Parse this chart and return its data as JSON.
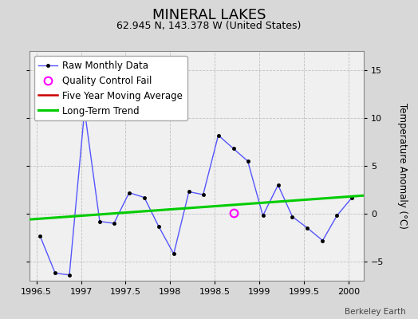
{
  "title": "MINERAL LAKES",
  "subtitle": "62.945 N, 143.378 W (United States)",
  "ylabel_right": "Temperature Anomaly (°C)",
  "watermark": "Berkeley Earth",
  "xlim": [
    1996.42,
    2000.17
  ],
  "ylim": [
    -7,
    17
  ],
  "yticks": [
    -5,
    0,
    5,
    10,
    15
  ],
  "xticks": [
    1996.5,
    1997.0,
    1997.5,
    1998.0,
    1998.5,
    1999.0,
    1999.5,
    2000.0
  ],
  "raw_x": [
    1996.54,
    1996.71,
    1996.87,
    1997.04,
    1997.21,
    1997.37,
    1997.54,
    1997.71,
    1997.87,
    1998.04,
    1998.21,
    1998.37,
    1998.54,
    1998.71,
    1998.87,
    1999.04,
    1999.21,
    1999.37,
    1999.54,
    1999.71,
    1999.87,
    2000.04
  ],
  "raw_y": [
    -2.3,
    -6.2,
    -6.4,
    10.8,
    -0.8,
    -1.0,
    2.2,
    1.7,
    -1.3,
    -4.2,
    2.3,
    2.0,
    8.2,
    6.8,
    5.5,
    -0.2,
    3.0,
    -0.3,
    -1.5,
    -2.8,
    -0.2,
    1.7
  ],
  "qc_fail_x": [
    1998.71
  ],
  "qc_fail_y": [
    0.1
  ],
  "trend_x": [
    1996.42,
    2000.17
  ],
  "trend_y": [
    -0.6,
    1.9
  ],
  "background_color": "#d8d8d8",
  "plot_bg_color": "#f0f0f0",
  "raw_line_color": "#5555ff",
  "raw_marker_color": "#000000",
  "trend_color": "#00cc00",
  "five_year_color": "#cc0000",
  "qc_color": "#ff00ff",
  "grid_color": "#c0c0c0",
  "title_fontsize": 13,
  "subtitle_fontsize": 9,
  "legend_fontsize": 8.5,
  "tick_fontsize": 8
}
